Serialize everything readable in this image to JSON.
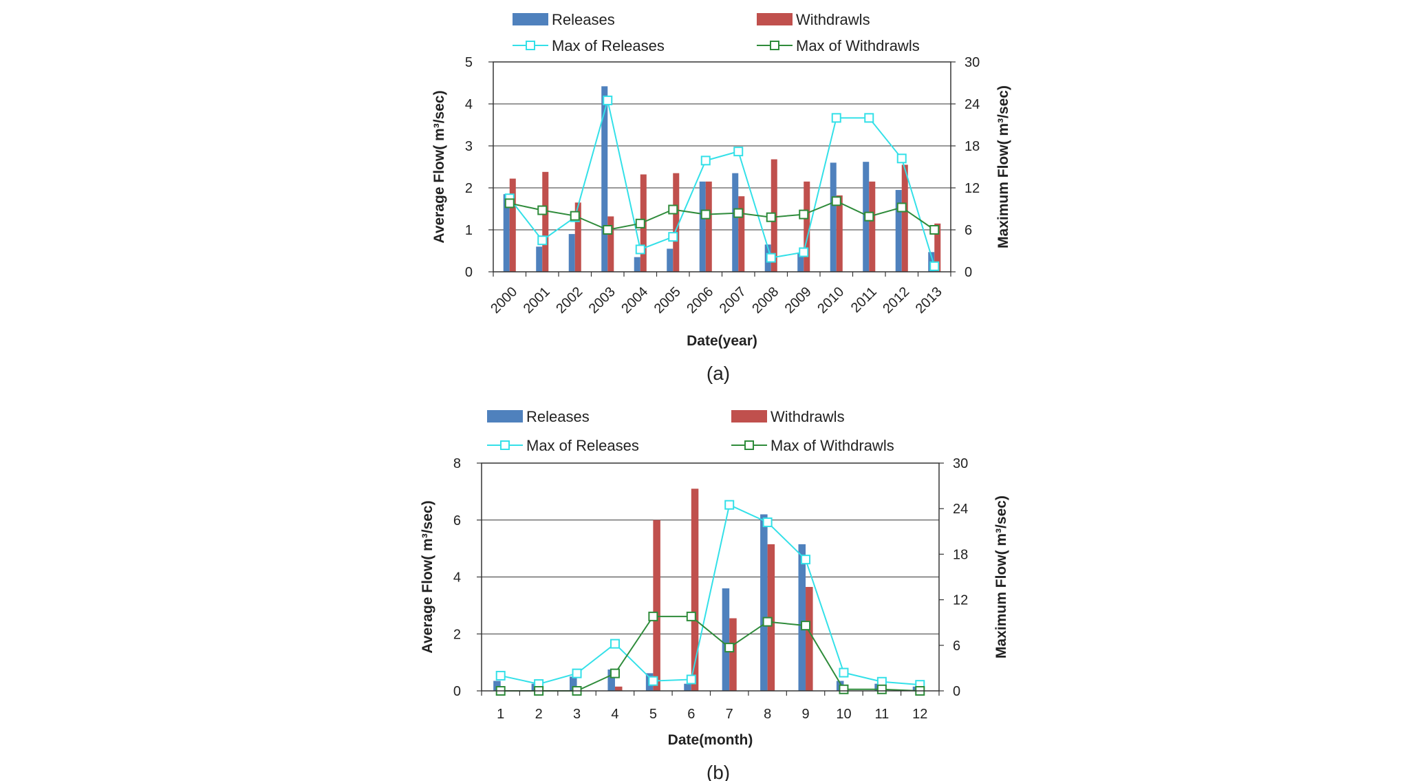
{
  "colors": {
    "releases_bar": "#4F81BD",
    "withdrawls_bar": "#C0504D",
    "max_releases_line": "#33E0E8",
    "max_withdrawls_line": "#2E8B3A",
    "grid": "#333333"
  },
  "chart_data": [
    {
      "type": "bar",
      "combo": "bar+line",
      "caption": "(a)",
      "title": "",
      "xlabel": "Date(year)",
      "ylabel": "Average Flow( m³/sec)",
      "ylabel_right": "Maximum Flow( m³/sec)",
      "ylim": [
        0,
        5
      ],
      "yticks": [
        0,
        1,
        2,
        3,
        4,
        5
      ],
      "ylim_right": [
        0,
        30
      ],
      "yticks_right": [
        0,
        6,
        12,
        18,
        24,
        30
      ],
      "xtick_rotation": "rotated",
      "grid": true,
      "legend": [
        {
          "label": "Releases",
          "kind": "bar",
          "color": "#4F81BD"
        },
        {
          "label": "Withdrawls",
          "kind": "bar",
          "color": "#C0504D"
        },
        {
          "label": "Max of Releases",
          "kind": "line",
          "color": "#33E0E8"
        },
        {
          "label": "Max of Withdrawls",
          "kind": "line",
          "color": "#2E8B3A"
        }
      ],
      "categories": [
        "2000",
        "2001",
        "2002",
        "2003",
        "2004",
        "2005",
        "2006",
        "2007",
        "2008",
        "2009",
        "2010",
        "2011",
        "2012",
        "2013"
      ],
      "series": [
        {
          "name": "Releases",
          "axis": "left",
          "kind": "bar",
          "values": [
            1.85,
            0.6,
            0.9,
            4.42,
            0.35,
            0.55,
            2.15,
            2.35,
            0.65,
            0.45,
            2.6,
            2.62,
            1.95,
            0.47
          ]
        },
        {
          "name": "Withdrawls",
          "axis": "left",
          "kind": "bar",
          "values": [
            2.22,
            2.38,
            1.65,
            1.32,
            2.32,
            2.35,
            2.15,
            1.8,
            2.68,
            2.15,
            1.82,
            2.15,
            2.55,
            1.15
          ]
        },
        {
          "name": "Max of Releases",
          "axis": "right",
          "kind": "line",
          "values": [
            10.5,
            4.5,
            7.8,
            24.5,
            3.2,
            5.0,
            15.9,
            17.2,
            2.0,
            2.8,
            22.0,
            22.0,
            16.2,
            0.8
          ]
        },
        {
          "name": "Max of Withdrawls",
          "axis": "right",
          "kind": "line",
          "values": [
            9.8,
            8.8,
            8.0,
            6.0,
            6.9,
            8.9,
            8.2,
            8.4,
            7.8,
            8.2,
            10.1,
            7.9,
            9.2,
            6.0
          ]
        }
      ]
    },
    {
      "type": "bar",
      "combo": "bar+line",
      "caption": "(b)",
      "title": "",
      "xlabel": "Date(month)",
      "ylabel": "Average Flow( m³/sec)",
      "ylabel_right": "Maximum Flow( m³/sec)",
      "ylim": [
        0,
        8
      ],
      "yticks": [
        0,
        2,
        4,
        6,
        8
      ],
      "ylim_right": [
        0,
        30
      ],
      "yticks_right": [
        0,
        6,
        12,
        18,
        24,
        30
      ],
      "xtick_rotation": "none",
      "grid": true,
      "legend": [
        {
          "label": "Releases",
          "kind": "bar",
          "color": "#4F81BD"
        },
        {
          "label": "Withdrawls",
          "kind": "bar",
          "color": "#C0504D"
        },
        {
          "label": "Max of Releases",
          "kind": "line",
          "color": "#33E0E8"
        },
        {
          "label": "Max of Withdrawls",
          "kind": "line",
          "color": "#2E8B3A"
        }
      ],
      "categories": [
        "1",
        "2",
        "3",
        "4",
        "5",
        "6",
        "7",
        "8",
        "9",
        "10",
        "11",
        "12"
      ],
      "series": [
        {
          "name": "Releases",
          "axis": "left",
          "kind": "bar",
          "values": [
            0.35,
            0.25,
            0.5,
            0.75,
            0.62,
            0.25,
            3.6,
            6.2,
            5.15,
            0.35,
            0.25,
            0.15
          ]
        },
        {
          "name": "Withdrawls",
          "axis": "left",
          "kind": "bar",
          "values": [
            0.0,
            0.0,
            0.0,
            0.15,
            6.0,
            7.1,
            2.55,
            5.15,
            3.65,
            0.0,
            0.0,
            0.0
          ]
        },
        {
          "name": "Max of Releases",
          "axis": "right",
          "kind": "line",
          "values": [
            2.0,
            0.9,
            2.3,
            6.2,
            1.3,
            1.5,
            24.5,
            22.2,
            17.3,
            2.4,
            1.2,
            0.8
          ]
        },
        {
          "name": "Max of Withdrawls",
          "axis": "right",
          "kind": "line",
          "values": [
            0.0,
            0.0,
            0.0,
            2.3,
            9.8,
            9.8,
            5.7,
            9.1,
            8.6,
            0.2,
            0.2,
            0.0
          ]
        }
      ]
    }
  ]
}
